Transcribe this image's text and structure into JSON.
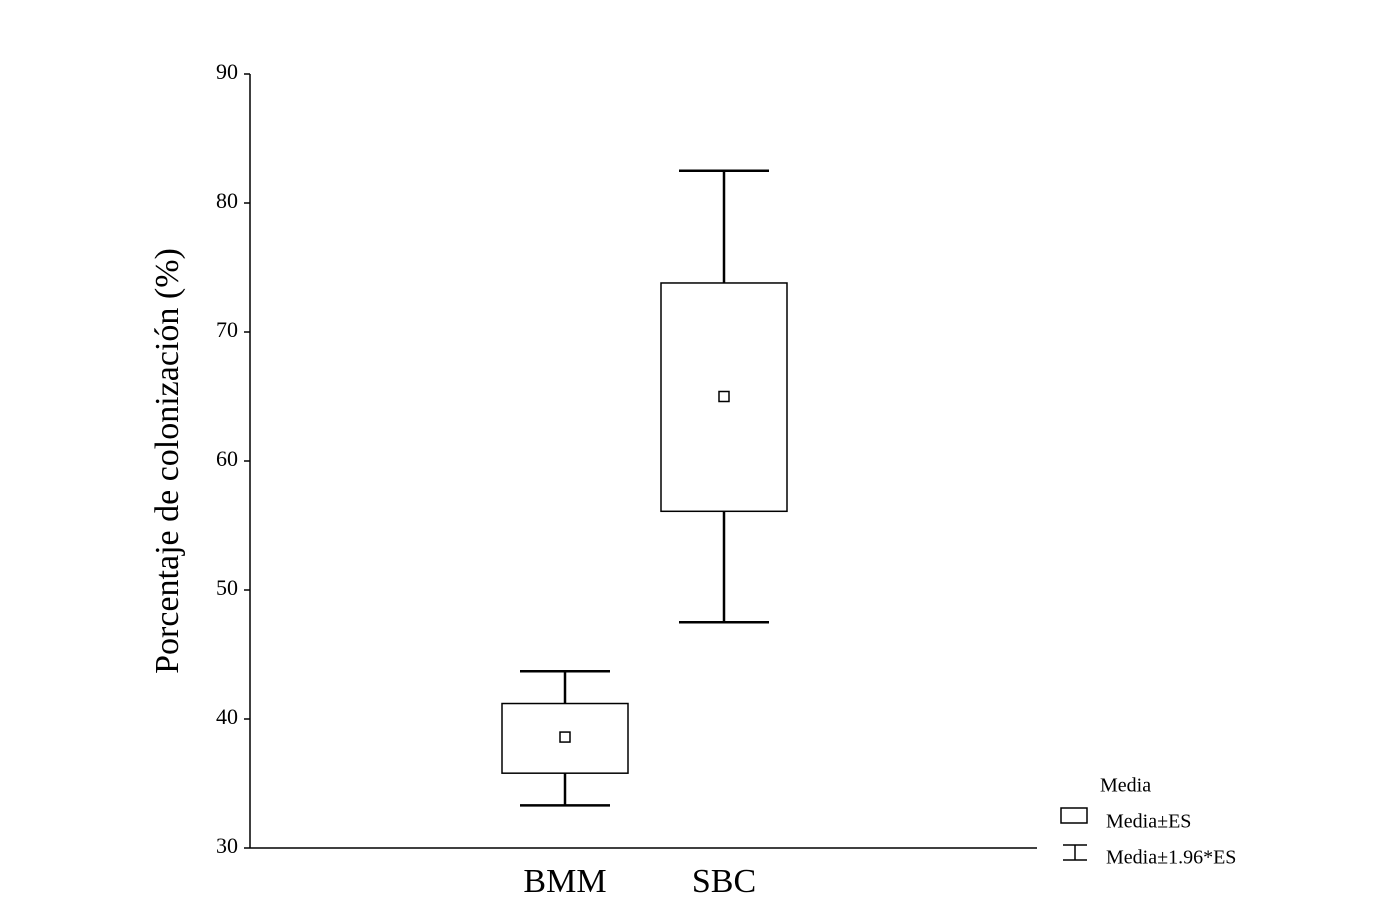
{
  "chart_data": {
    "type": "box",
    "y_label": "Porcentaje de colonización (%)",
    "categories": [
      "BMM",
      "SBC"
    ],
    "mean": [
      38.6,
      65.0
    ],
    "box_low": [
      35.8,
      56.1
    ],
    "box_high": [
      41.2,
      73.8
    ],
    "whisker_low": [
      33.3,
      47.5
    ],
    "whisker_high": [
      43.7,
      82.5
    ],
    "ylim": [
      30,
      90
    ],
    "yticks": [
      30,
      40,
      50,
      60,
      70,
      80,
      90
    ],
    "legend": {
      "title": "Media",
      "box": "Media±ES",
      "whisker": "Media±1.96*ES"
    }
  }
}
